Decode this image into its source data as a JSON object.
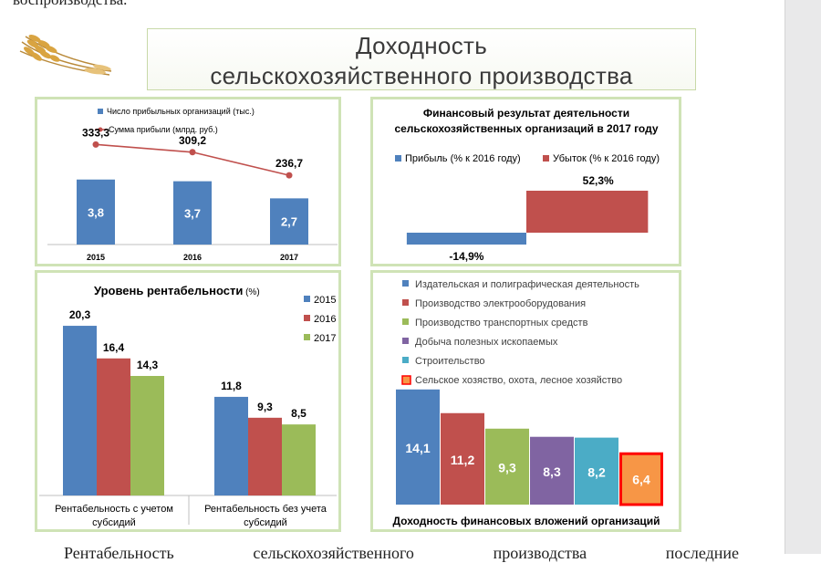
{
  "doc_text": {
    "top_fragment": "воспроизводства.",
    "bottom_words": [
      "Рентабельность",
      "сельскохозяйственного",
      "производства",
      "последние"
    ]
  },
  "title": {
    "line1": "Доходность",
    "line2": "сельскохозяйственного производства"
  },
  "colors": {
    "blue": "#4f81bd",
    "red": "#c0504d",
    "green": "#9bbb59",
    "purple": "#8064a2",
    "cyan": "#4bacc6",
    "orange": "#f79646",
    "panel_border": "#cfe3b6"
  },
  "chart_data": [
    {
      "id": "profitable-orgs",
      "type": "bar",
      "title": "",
      "categories": [
        "2015",
        "2016",
        "2017"
      ],
      "series": [
        {
          "name": "Число прибыльных организаций (тыс.)",
          "type": "bar",
          "values": [
            3.8,
            3.7,
            2.7
          ],
          "labels": [
            "3,8",
            "3,7",
            "2,7"
          ]
        },
        {
          "name": "Сумма прибыли (млрд. руб.)",
          "type": "line",
          "values": [
            333.3,
            309.2,
            236.7
          ],
          "labels": [
            "333,3",
            "309,2",
            "236,7"
          ]
        }
      ]
    },
    {
      "id": "financial-result",
      "type": "bar",
      "title": "Финансовый результат деятельности сельскохозяйственных организаций в 2017 году",
      "title_line1": "Финансовый результат деятельности",
      "title_line2": "сельскохозяйственных организаций в 2017 году",
      "series": [
        {
          "name": "Прибыль (% к 2016 году)",
          "values": [
            -14.9
          ],
          "labels": [
            "-14,9%"
          ]
        },
        {
          "name": "Убыток (% к 2016 году)",
          "values": [
            52.3
          ],
          "labels": [
            "52,3%"
          ]
        }
      ]
    },
    {
      "id": "profitability-level",
      "type": "bar",
      "title": "Уровень рентабельности",
      "title_unit": "(%)",
      "categories": [
        "Рентабельность с учетом субсидий",
        "Рентабельность без учета субсидий"
      ],
      "category_lines": [
        [
          "Рентабельность с учетом",
          "субсидий"
        ],
        [
          "Рентабельность без учета",
          "субсидий"
        ]
      ],
      "series": [
        {
          "name": "2015",
          "values": [
            20.3,
            11.8
          ],
          "labels": [
            "20,3",
            "11,8"
          ]
        },
        {
          "name": "2016",
          "values": [
            16.4,
            9.3
          ],
          "labels": [
            "16,4",
            "9,3"
          ]
        },
        {
          "name": "2017",
          "values": [
            14.3,
            8.5
          ],
          "labels": [
            "14,3",
            "8,5"
          ]
        }
      ],
      "ylim": [
        0,
        22
      ]
    },
    {
      "id": "investment-returns",
      "type": "bar",
      "title": "Доходность финансовых вложений организаций",
      "categories": [
        "Издательская и полиграфическая деятельность",
        "Производство электрооборудования",
        "Производство транспортных средств",
        "Добыча полезных ископаемых",
        "Строительство",
        "Сельское хозяство, охота, лесное хозяйство"
      ],
      "values": [
        14.1,
        11.2,
        9.3,
        8.3,
        8.2,
        6.4
      ],
      "labels": [
        "14,1",
        "11,2",
        "9,3",
        "8,3",
        "8,2",
        "6,4"
      ],
      "highlight_index": 5
    }
  ]
}
